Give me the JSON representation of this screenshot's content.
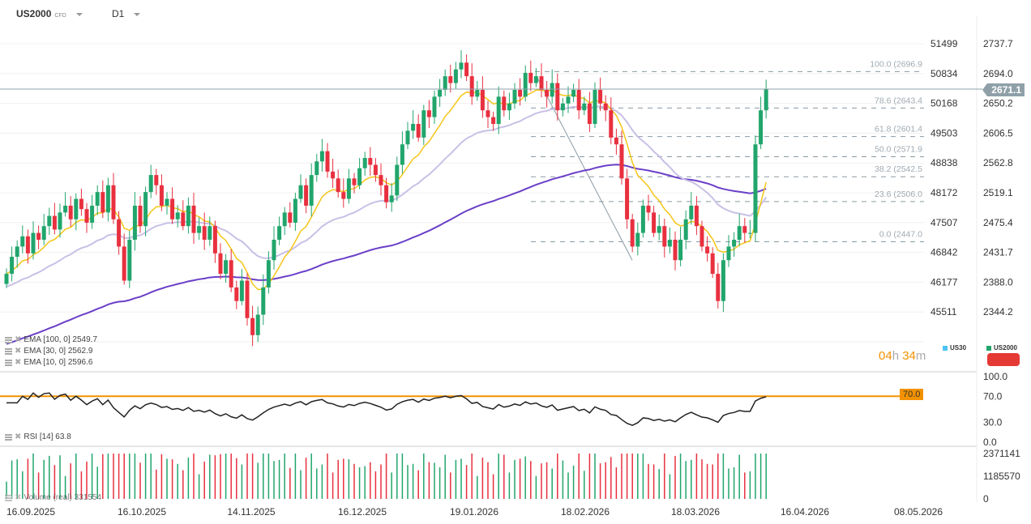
{
  "header": {
    "symbol": "US2000",
    "symbol_type": "CFD",
    "timeframe": "D1"
  },
  "colors": {
    "up": "#21a56c",
    "down": "#e8303f",
    "ema100": "#6a3fc8",
    "ema30": "#c9c0e6",
    "ema10": "#f5c518",
    "rsi": "#222222",
    "rsi_level": "#f39200",
    "fib": "#8a9aa4",
    "price_tag": "#8fa0a8",
    "us30": "#4fc3f7",
    "us2000": "#21a56c"
  },
  "chart_data": [
    {
      "type": "candlestick",
      "dates_ticks": [
        "16.09.2025",
        "16.10.2025",
        "14.11.2025",
        "16.12.2025",
        "19.01.2026",
        "18.02.2026",
        "18.03.2026",
        "16.04.2026",
        "08.05.2026"
      ],
      "y_ticks_us2000": [
        "2737.7",
        "2694.0",
        "2650.2",
        "2606.5",
        "2562.8",
        "2519.1",
        "2475.4",
        "2431.7",
        "2388.0",
        "2344.2"
      ],
      "y_ticks_us30": [
        "51499",
        "50834",
        "50168",
        "49503",
        "48838",
        "48172",
        "47507",
        "46842",
        "46177",
        "45511"
      ],
      "ylim": [
        2302,
        2760
      ],
      "last_price": "2671.1",
      "close": [
        2400,
        2425,
        2440,
        2455,
        2430,
        2460,
        2450,
        2470,
        2485,
        2465,
        2490,
        2500,
        2480,
        2510,
        2495,
        2475,
        2500,
        2520,
        2490,
        2530,
        2480,
        2440,
        2390,
        2450,
        2500,
        2470,
        2520,
        2545,
        2530,
        2500,
        2510,
        2480,
        2490,
        2470,
        2500,
        2460,
        2470,
        2450,
        2470,
        2430,
        2400,
        2420,
        2380,
        2360,
        2390,
        2335,
        2310,
        2340,
        2380,
        2420,
        2450,
        2470,
        2490,
        2475,
        2510,
        2530,
        2500,
        2545,
        2565,
        2580,
        2550,
        2540,
        2520,
        2510,
        2540,
        2530,
        2555,
        2570,
        2560,
        2545,
        2530,
        2505,
        2515,
        2560,
        2590,
        2610,
        2620,
        2600,
        2640,
        2630,
        2660,
        2670,
        2690,
        2680,
        2700,
        2710,
        2690,
        2660,
        2670,
        2640,
        2630,
        2620,
        2660,
        2640,
        2650,
        2670,
        2660,
        2695,
        2680,
        2690,
        2670,
        2660,
        2680,
        2640,
        2650,
        2660,
        2670,
        2640,
        2650,
        2620,
        2670,
        2650,
        2640,
        2600,
        2590,
        2540,
        2480,
        2440,
        2460,
        2500,
        2490,
        2460,
        2470,
        2440,
        2450,
        2420,
        2450,
        2480,
        2500,
        2470,
        2440,
        2430,
        2400,
        2360,
        2420,
        2440,
        2450,
        2470,
        2460,
        2460,
        2590,
        2640,
        2671
      ],
      "fib_levels": [
        {
          "label": "100.0 (2696.9",
          "value": 2696.9
        },
        {
          "label": "78.6 (2643.4",
          "value": 2643.4
        },
        {
          "label": "61.8 (2601.4",
          "value": 2601.4
        },
        {
          "label": "50.0 (2571.9",
          "value": 2571.9
        },
        {
          "label": "38.2 (2542.5",
          "value": 2542.5
        },
        {
          "label": "23.6 (2506.0",
          "value": 2506.0
        },
        {
          "label": "0.0 (2447.0",
          "value": 2447.0
        }
      ],
      "legend": [
        "EMA [100, 0] 2549.7",
        "EMA [30, 0] 2562.9",
        "EMA [10, 0] 2596.6"
      ],
      "series_labels": [
        "US30",
        "US2000"
      ]
    },
    {
      "type": "line",
      "title": "RSI [14] 63.8",
      "y_ticks": [
        "100.0",
        "70.0",
        "30.0",
        "0.0"
      ],
      "ylim": [
        0,
        100
      ],
      "level": 70,
      "level_label": "70.0"
    },
    {
      "type": "bar",
      "title": "Volume (real) 331554",
      "y_ticks": [
        "2371141",
        "1185570",
        "0"
      ],
      "ylim": [
        0,
        2371141
      ]
    }
  ],
  "timer": {
    "hours": "04",
    "h": "h",
    "minutes": "34",
    "m": "m"
  }
}
